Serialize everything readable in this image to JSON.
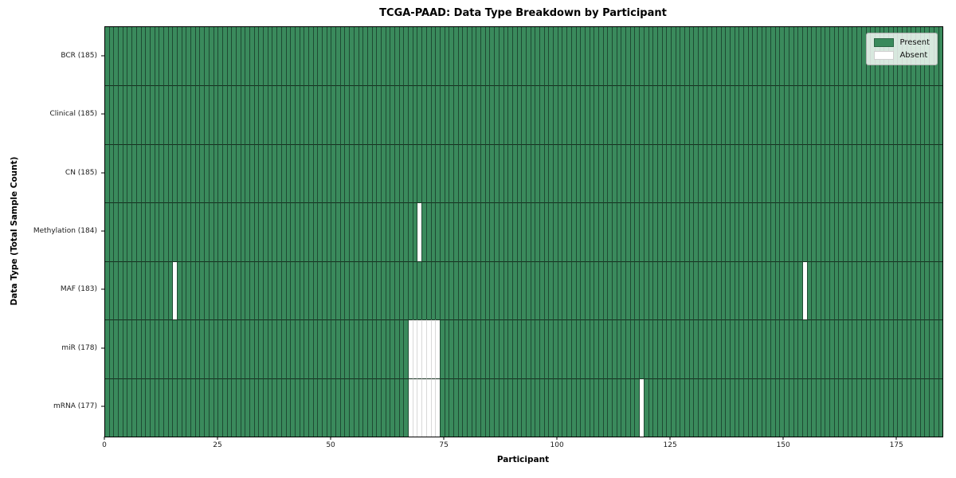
{
  "chart_data": {
    "type": "heatmap",
    "title": "TCGA-PAAD: Data Type Breakdown by Participant",
    "xlabel": "Participant",
    "ylabel": "Data Type (Total Sample Count)",
    "x_range": [
      0,
      185
    ],
    "x_ticks": [
      0,
      25,
      50,
      75,
      100,
      125,
      150,
      175
    ],
    "n_participants": 185,
    "grid": false,
    "rows": [
      {
        "label": "BCR (185)",
        "data_type": "BCR",
        "present_count": 185,
        "absent_participants": []
      },
      {
        "label": "Clinical (185)",
        "data_type": "Clinical",
        "present_count": 185,
        "absent_participants": []
      },
      {
        "label": "CN (185)",
        "data_type": "CN",
        "present_count": 185,
        "absent_participants": []
      },
      {
        "label": "Methylation (184)",
        "data_type": "Methylation",
        "present_count": 184,
        "absent_participants": [
          69
        ]
      },
      {
        "label": "MAF (183)",
        "data_type": "MAF",
        "present_count": 183,
        "absent_participants": [
          15,
          154
        ]
      },
      {
        "label": "miR (178)",
        "data_type": "miR",
        "present_count": 178,
        "absent_participants": [
          67,
          68,
          69,
          70,
          71,
          72,
          73
        ]
      },
      {
        "label": "mRNA (177)",
        "data_type": "mRNA",
        "present_count": 177,
        "absent_participants": [
          67,
          68,
          69,
          70,
          71,
          72,
          73,
          118
        ]
      }
    ],
    "legend": {
      "position": "upper right",
      "entries": [
        {
          "label": "Present",
          "color": "#3A8A5C"
        },
        {
          "label": "Absent",
          "color": "#FFFFFF"
        }
      ]
    },
    "colors": {
      "present": "#3A8A5C",
      "absent": "#FFFFFF",
      "edge_dark": "#1E4A33",
      "edge_dark_horizontal": "#16301F",
      "edge_light": "#D8D8D8"
    }
  }
}
